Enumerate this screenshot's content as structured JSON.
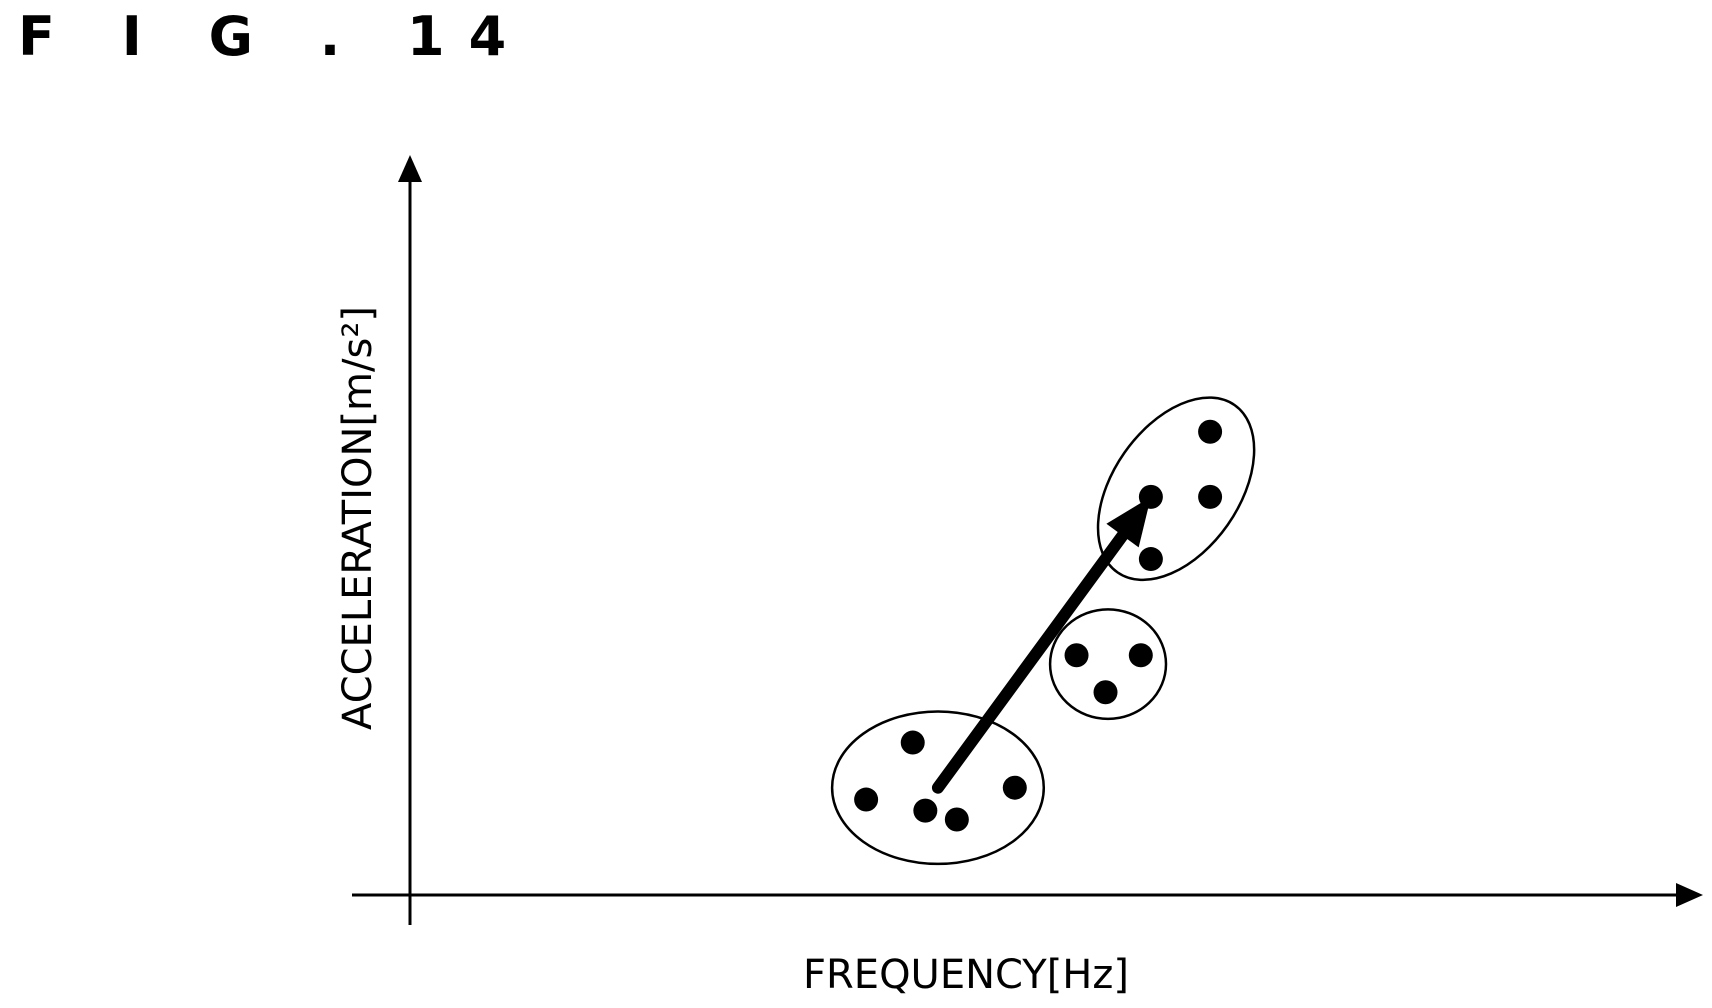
{
  "figure_label": "F I G . 14",
  "chart_data": {
    "type": "scatter",
    "title": "",
    "xlabel": "FREQUENCY[Hz]",
    "ylabel": "ACCELERATION[m∕s²]",
    "xlim": [
      0,
      100
    ],
    "ylim": [
      0,
      100
    ],
    "grid": false,
    "ticks": false,
    "legend": "none",
    "colors": {
      "ink": "#000000",
      "background": "#ffffff"
    },
    "clusters": [
      {
        "points": [
          {
            "x": 36.2,
            "y": 12.9
          },
          {
            "x": 39.9,
            "y": 20.6
          },
          {
            "x": 40.9,
            "y": 11.4
          },
          {
            "x": 43.4,
            "y": 10.2
          },
          {
            "x": 48.0,
            "y": 14.5
          }
        ],
        "ellipse": {
          "cx": 41.9,
          "cy": 14.5,
          "rx": 8.4,
          "ry": 10.3
        }
      },
      {
        "points": [
          {
            "x": 52.9,
            "y": 32.4
          },
          {
            "x": 55.2,
            "y": 27.4
          },
          {
            "x": 58.0,
            "y": 32.4
          }
        ],
        "ellipse": {
          "cx": 55.4,
          "cy": 31.2,
          "rx": 4.6,
          "ry": 7.4
        }
      },
      {
        "points": [
          {
            "x": 58.8,
            "y": 45.4
          },
          {
            "x": 58.8,
            "y": 53.8
          },
          {
            "x": 63.5,
            "y": 53.8
          },
          {
            "x": 63.5,
            "y": 62.6
          }
        ],
        "ellipse": {
          "cx": 60.8,
          "cy": 54.9,
          "rx": 5.0,
          "ry": 13.8,
          "rotate": 35
        }
      }
    ],
    "arrow": {
      "from": {
        "x": 41.9,
        "y": 14.5
      },
      "to": {
        "x": 58.8,
        "y": 53.8
      }
    }
  }
}
